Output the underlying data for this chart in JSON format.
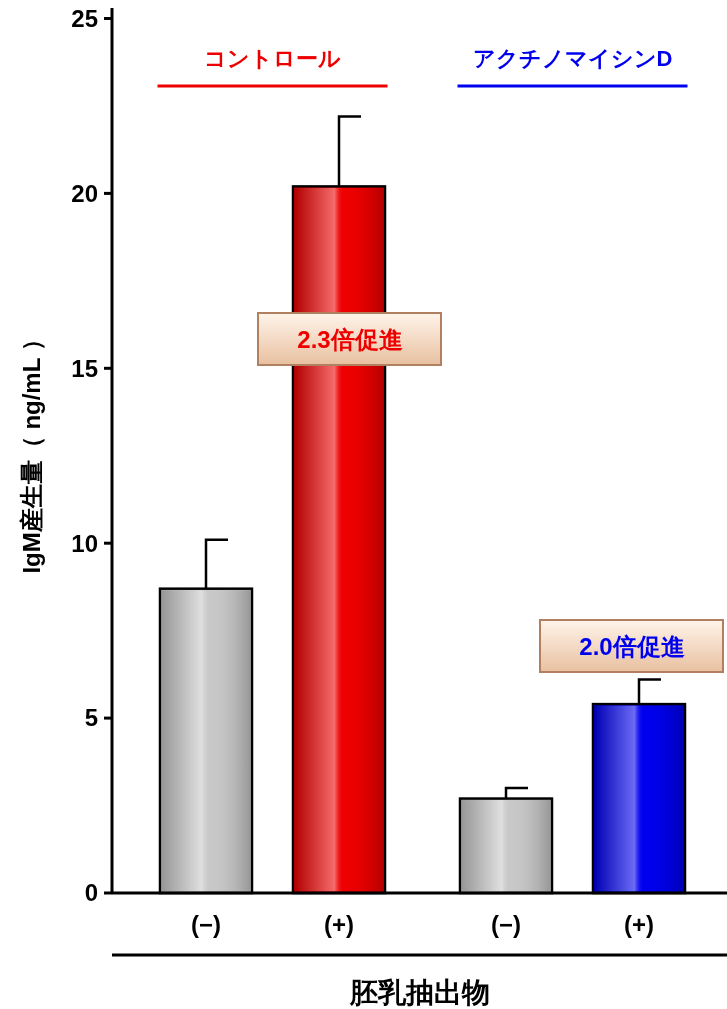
{
  "chart_data": {
    "type": "bar",
    "categories": [
      "(−)",
      "(+)",
      "(−)",
      "(+)"
    ],
    "series": [
      {
        "values": [
          8.7,
          20.2,
          2.7,
          5.4
        ],
        "colors": [
          "#c8c8c8",
          "#ee0000",
          "#c8c8c8",
          "#0000ee"
        ],
        "errors": [
          [
            8.7,
            10.1
          ],
          [
            20.2,
            22.2
          ],
          [
            2.7,
            3.0
          ],
          [
            5.4,
            6.1
          ]
        ]
      }
    ],
    "ylabel": "IgM産生量（ ng/mL ）",
    "xlabel": "胚乳抽出物",
    "ylim": [
      0,
      25.3
    ],
    "yticks": [
      0,
      5,
      10,
      15,
      20,
      25
    ],
    "grid": false,
    "annotations": [
      "コントロール",
      "アクチノマイシンD",
      "2.3倍促進",
      "2.0倍促進"
    ]
  }
}
